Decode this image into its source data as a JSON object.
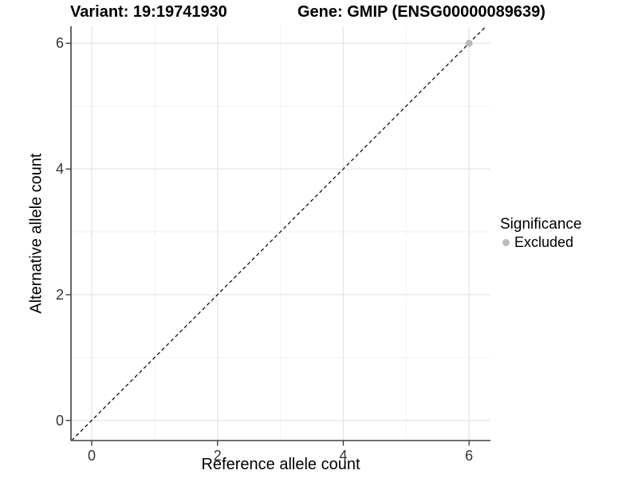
{
  "header": {
    "variant_title": "Variant: 19:19741930",
    "gene_title": "Gene: GMIP (ENSG00000089639)"
  },
  "legend": {
    "title": "Significance",
    "items": [
      {
        "label": "Excluded",
        "color": "#bcbcbc"
      }
    ]
  },
  "chart_data": {
    "type": "scatter",
    "title_left": "Variant: 19:19741930",
    "title_right": "Gene: GMIP (ENSG00000089639)",
    "xlabel": "Reference allele count",
    "ylabel": "Alternative allele count",
    "xlim": [
      -0.33,
      6.34
    ],
    "ylim": [
      -0.32,
      6.27
    ],
    "xticks": [
      0,
      2,
      4,
      6
    ],
    "yticks": [
      0,
      2,
      4,
      6
    ],
    "minor_xticks": [
      1,
      3,
      5
    ],
    "minor_yticks": [
      1,
      3,
      5
    ],
    "grid": "major+minor",
    "legend_position": "right",
    "reference_line": {
      "type": "abline",
      "intercept": 0,
      "slope": 1,
      "style": "dashed",
      "color": "#000000"
    },
    "series": [
      {
        "name": "Excluded",
        "color": "#bcbcbc",
        "points": [
          {
            "x": 6,
            "y": 6
          }
        ]
      }
    ],
    "colors": {
      "grid_major": "#e3e3e3",
      "grid_minor": "#f2f2f2",
      "axis_line": "#404040",
      "tick_text": "#333333"
    }
  }
}
